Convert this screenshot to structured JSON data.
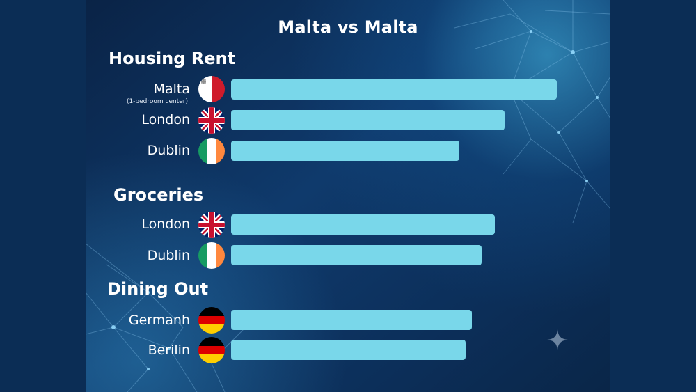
{
  "title": "Malta vs Malta",
  "sections": {
    "housing": "Housing Rent",
    "groceries": "Groceries",
    "dining": "Dining Out"
  },
  "rows": [
    {
      "label": "Malta",
      "sublabel": "(1-bedroom center)",
      "flag": "malta-flag-icon"
    },
    {
      "label": "London",
      "flag": "uk-flag-icon"
    },
    {
      "label": "Dublin",
      "flag": "ireland-flag-icon"
    },
    {
      "label": "London",
      "flag": "uk-flag-icon"
    },
    {
      "label": "Dublin",
      "flag": "ireland-flag-icon"
    },
    {
      "label": "Germanh",
      "flag": "germany-flag-icon"
    },
    {
      "label": "Berilin",
      "flag": "germany-flag-icon"
    }
  ],
  "chart_data": {
    "type": "bar",
    "orientation": "horizontal",
    "title": "Malta vs Malta",
    "groups": [
      {
        "name": "Housing Rent",
        "categories": [
          "Malta",
          "London",
          "Dublin"
        ],
        "values": [
          100,
          84,
          70
        ]
      },
      {
        "name": "Groceries",
        "categories": [
          "London",
          "Dublin"
        ],
        "values": [
          81,
          77
        ]
      },
      {
        "name": "Dining Out",
        "categories": [
          "Germanh",
          "Berilin"
        ],
        "values": [
          74,
          72
        ]
      }
    ],
    "xlim": [
      0,
      100
    ],
    "axes_shown": false,
    "bar_color": "#79d7ea"
  },
  "colors": {
    "background": "#0b2d55",
    "bar": "#79d7ea",
    "text": "#ffffff"
  }
}
